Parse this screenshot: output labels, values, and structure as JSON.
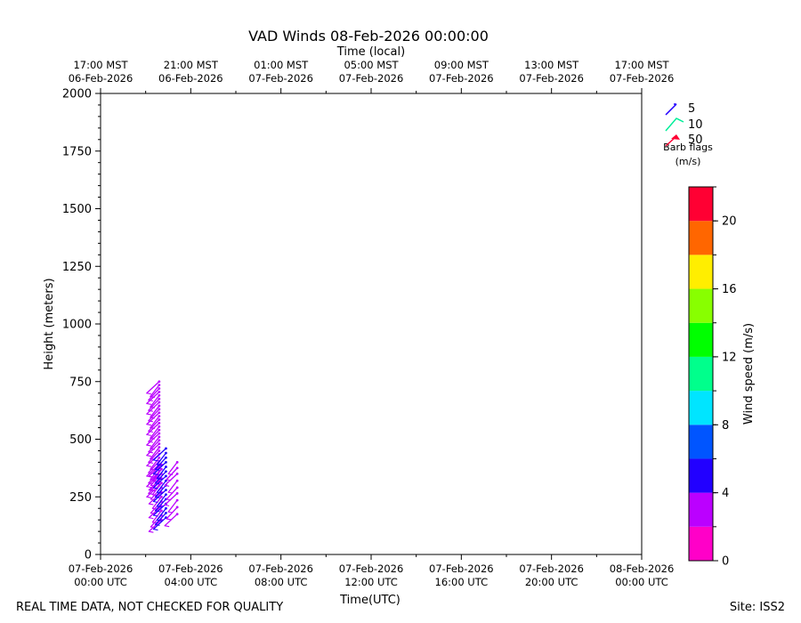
{
  "chart_data": {
    "type": "scatter",
    "title": "VAD Winds 08-Feb-2026 00:00:00",
    "top_axis_label": "Time (local)",
    "xlabel": "Time(UTC)",
    "ylabel": "Height (meters)",
    "ylim": [
      0,
      2000
    ],
    "xlim_hours": [
      0,
      24
    ],
    "y_ticks": [
      {
        "value": 0,
        "label": "0"
      },
      {
        "value": 250,
        "label": "250"
      },
      {
        "value": 500,
        "label": "500"
      },
      {
        "value": 750,
        "label": "750"
      },
      {
        "value": 1000,
        "label": "1000"
      },
      {
        "value": 1250,
        "label": "1250"
      },
      {
        "value": 1500,
        "label": "1500"
      },
      {
        "value": 1750,
        "label": "1750"
      },
      {
        "value": 2000,
        "label": "2000"
      }
    ],
    "x_ticks_utc": [
      {
        "hour": 0,
        "line1": "07-Feb-2026",
        "line2": "00:00 UTC"
      },
      {
        "hour": 4,
        "line1": "07-Feb-2026",
        "line2": "04:00 UTC"
      },
      {
        "hour": 8,
        "line1": "07-Feb-2026",
        "line2": "08:00 UTC"
      },
      {
        "hour": 12,
        "line1": "07-Feb-2026",
        "line2": "12:00 UTC"
      },
      {
        "hour": 16,
        "line1": "07-Feb-2026",
        "line2": "16:00 UTC"
      },
      {
        "hour": 20,
        "line1": "07-Feb-2026",
        "line2": "20:00 UTC"
      },
      {
        "hour": 24,
        "line1": "08-Feb-2026",
        "line2": "00:00 UTC"
      }
    ],
    "x_ticks_local": [
      {
        "hour": 0,
        "line1": "17:00 MST",
        "line2": "06-Feb-2026"
      },
      {
        "hour": 4,
        "line1": "21:00 MST",
        "line2": "06-Feb-2026"
      },
      {
        "hour": 8,
        "line1": "01:00 MST",
        "line2": "07-Feb-2026"
      },
      {
        "hour": 12,
        "line1": "05:00 MST",
        "line2": "07-Feb-2026"
      },
      {
        "hour": 16,
        "line1": "09:00 MST",
        "line2": "07-Feb-2026"
      },
      {
        "hour": 20,
        "line1": "13:00 MST",
        "line2": "07-Feb-2026"
      },
      {
        "hour": 24,
        "line1": "17:00 MST",
        "line2": "07-Feb-2026"
      }
    ],
    "barb_legend": {
      "items": [
        {
          "label": "5",
          "color": "#2200ff"
        },
        {
          "label": "10",
          "color": "#00ee99"
        },
        {
          "label": "50",
          "color": "#ff0033"
        }
      ],
      "caption_line1": "Barb flags",
      "caption_line2": "(m/s)"
    },
    "colorbar": {
      "label": "Wind speed (m/s)",
      "min": 0,
      "max": 22,
      "tick_values": [
        0,
        4,
        8,
        12,
        16,
        20
      ],
      "bands": [
        {
          "from": 0,
          "to": 2,
          "color": "#ff00c8"
        },
        {
          "from": 2,
          "to": 4,
          "color": "#bb00ff"
        },
        {
          "from": 4,
          "to": 6,
          "color": "#2200ff"
        },
        {
          "from": 6,
          "to": 8,
          "color": "#0055ff"
        },
        {
          "from": 8,
          "to": 10,
          "color": "#00e5ff"
        },
        {
          "from": 10,
          "to": 12,
          "color": "#00ff8c"
        },
        {
          "from": 12,
          "to": 14,
          "color": "#00ff00"
        },
        {
          "from": 14,
          "to": 16,
          "color": "#88ff00"
        },
        {
          "from": 16,
          "to": 18,
          "color": "#ffee00"
        },
        {
          "from": 18,
          "to": 20,
          "color": "#ff6600"
        },
        {
          "from": 20,
          "to": 22,
          "color": "#ff0033"
        }
      ]
    },
    "series": [
      {
        "hour": 2.6,
        "heights": [
          300,
          315,
          330,
          345,
          360,
          375,
          390,
          405,
          420,
          435,
          450,
          465,
          480,
          495,
          510,
          525,
          540,
          555,
          570,
          585,
          600,
          615,
          630,
          645,
          660,
          675,
          690,
          705,
          720,
          735,
          750
        ],
        "speed": 3.0
      },
      {
        "hour": 2.7,
        "heights": [
          150,
          170,
          190,
          210,
          230,
          250,
          270,
          290,
          310,
          330,
          350,
          370,
          390
        ],
        "speed": 3.5
      },
      {
        "hour": 2.9,
        "heights": [
          160,
          180,
          200,
          220,
          240,
          260,
          280,
          300,
          320,
          340,
          360,
          380,
          400,
          420,
          440,
          460
        ],
        "speed": 4.2
      },
      {
        "hour": 3.4,
        "heights": [
          175,
          205,
          235,
          265,
          290,
          320,
          350,
          375,
          400
        ],
        "speed": 3.2
      }
    ]
  },
  "footer": {
    "left": "REAL TIME DATA, NOT CHECKED FOR QUALITY",
    "right": "Site: ISS2"
  }
}
